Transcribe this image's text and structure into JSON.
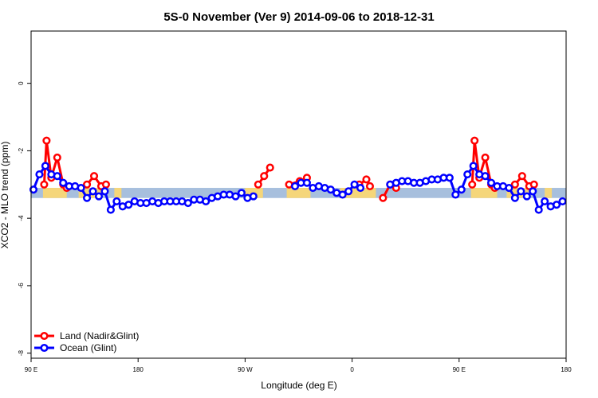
{
  "chart_data": {
    "type": "line",
    "title": "5S-0 November (Ver 9)   2014-09-06 to 2018-12-31",
    "xlabel": "Longitude (deg E)",
    "ylabel": "XCO2 - MLO trend (ppm)",
    "xlim": [
      0,
      450
    ],
    "ylim": [
      -8.15,
      1.55
    ],
    "x_ticks": [
      {
        "value": 0,
        "label": "90 E"
      },
      {
        "value": 90,
        "label": "180"
      },
      {
        "value": 180,
        "label": "90 W"
      },
      {
        "value": 270,
        "label": "0"
      },
      {
        "value": 360,
        "label": "90 E"
      },
      {
        "value": 450,
        "label": "180"
      }
    ],
    "y_ticks": [
      {
        "value": 0,
        "label": "0"
      },
      {
        "value": -2,
        "label": "-2"
      },
      {
        "value": -4,
        "label": "-4"
      },
      {
        "value": -6,
        "label": "-6"
      },
      {
        "value": -8,
        "label": "-8"
      }
    ],
    "background_band": {
      "y_range": [
        -3.4,
        -3.1
      ],
      "ocean_color": "#a7bfdd",
      "land_color": "#f5d67a"
    },
    "land_segments": [
      [
        10,
        30
      ],
      [
        40,
        60
      ],
      [
        70,
        76
      ],
      [
        180,
        195
      ],
      [
        215,
        235
      ],
      [
        260,
        290
      ],
      [
        370,
        392
      ],
      [
        400,
        420
      ],
      [
        432,
        438
      ]
    ],
    "legend": {
      "position": "bottom-left"
    },
    "series": [
      {
        "name": "Land (Nadir&Glint)",
        "color": "#ff0000",
        "segments": [
          [
            [
              11,
              -3.0
            ],
            [
              13,
              -1.7
            ],
            [
              17,
              -2.8
            ],
            [
              22,
              -2.2
            ],
            [
              27,
              -3.0
            ],
            [
              30,
              -3.1
            ]
          ],
          [
            [
              47,
              -3.0
            ],
            [
              53,
              -2.75
            ],
            [
              59,
              -3.05
            ],
            [
              63,
              -3.0
            ]
          ],
          [
            [
              191,
              -3.0
            ],
            [
              196,
              -2.75
            ],
            [
              201,
              -2.5
            ]
          ],
          [
            [
              217,
              -3.0
            ],
            [
              226,
              -2.9
            ],
            [
              232,
              -2.8
            ]
          ],
          [
            [
              276,
              -3.0
            ],
            [
              282,
              -2.85
            ],
            [
              285,
              -3.05
            ]
          ],
          [
            [
              296,
              -3.4
            ],
            [
              302,
              -3.0
            ],
            [
              307,
              -3.1
            ]
          ],
          [
            [
              371,
              -3.0
            ],
            [
              373,
              -1.7
            ],
            [
              377,
              -2.8
            ],
            [
              382,
              -2.2
            ],
            [
              387,
              -3.0
            ],
            [
              390,
              -3.1
            ]
          ],
          [
            [
              407,
              -3.0
            ],
            [
              413,
              -2.75
            ],
            [
              419,
              -3.05
            ],
            [
              423,
              -3.0
            ]
          ]
        ]
      },
      {
        "name": "Ocean (Glint)",
        "color": "#0000ff",
        "segments": [
          [
            [
              2,
              -3.15
            ],
            [
              7,
              -2.7
            ],
            [
              12,
              -2.45
            ],
            [
              17,
              -2.7
            ],
            [
              22,
              -2.75
            ],
            [
              27,
              -2.95
            ],
            [
              32,
              -3.05
            ],
            [
              37,
              -3.05
            ],
            [
              42,
              -3.1
            ],
            [
              47,
              -3.4
            ],
            [
              52,
              -3.2
            ],
            [
              57,
              -3.35
            ],
            [
              62,
              -3.2
            ],
            [
              67,
              -3.75
            ],
            [
              72,
              -3.5
            ],
            [
              77,
              -3.65
            ],
            [
              82,
              -3.6
            ],
            [
              87,
              -3.5
            ],
            [
              92,
              -3.55
            ],
            [
              97,
              -3.55
            ],
            [
              102,
              -3.5
            ],
            [
              107,
              -3.55
            ],
            [
              112,
              -3.5
            ],
            [
              117,
              -3.5
            ],
            [
              122,
              -3.5
            ],
            [
              127,
              -3.5
            ],
            [
              132,
              -3.55
            ],
            [
              137,
              -3.45
            ],
            [
              142,
              -3.45
            ],
            [
              147,
              -3.5
            ],
            [
              152,
              -3.4
            ],
            [
              157,
              -3.35
            ],
            [
              162,
              -3.3
            ],
            [
              167,
              -3.3
            ],
            [
              172,
              -3.35
            ],
            [
              177,
              -3.25
            ],
            [
              182,
              -3.4
            ],
            [
              187,
              -3.35
            ]
          ],
          [
            [
              222,
              -3.05
            ],
            [
              227,
              -2.95
            ],
            [
              232,
              -2.95
            ],
            [
              237,
              -3.1
            ],
            [
              242,
              -3.05
            ],
            [
              247,
              -3.1
            ],
            [
              252,
              -3.15
            ],
            [
              257,
              -3.25
            ],
            [
              262,
              -3.3
            ],
            [
              267,
              -3.2
            ],
            [
              272,
              -3.0
            ],
            [
              277,
              -3.1
            ]
          ],
          [
            [
              302,
              -3.0
            ],
            [
              307,
              -2.95
            ],
            [
              312,
              -2.9
            ],
            [
              317,
              -2.9
            ],
            [
              322,
              -2.95
            ],
            [
              327,
              -2.95
            ],
            [
              332,
              -2.9
            ],
            [
              337,
              -2.85
            ],
            [
              342,
              -2.85
            ],
            [
              347,
              -2.8
            ],
            [
              352,
              -2.8
            ],
            [
              357,
              -3.3
            ],
            [
              362,
              -3.15
            ],
            [
              367,
              -2.7
            ],
            [
              372,
              -2.45
            ],
            [
              377,
              -2.7
            ],
            [
              382,
              -2.75
            ],
            [
              387,
              -2.95
            ],
            [
              392,
              -3.05
            ],
            [
              397,
              -3.05
            ],
            [
              402,
              -3.1
            ],
            [
              407,
              -3.4
            ],
            [
              412,
              -3.2
            ],
            [
              417,
              -3.35
            ],
            [
              422,
              -3.2
            ],
            [
              427,
              -3.75
            ],
            [
              432,
              -3.5
            ],
            [
              437,
              -3.65
            ],
            [
              442,
              -3.6
            ],
            [
              447,
              -3.5
            ]
          ]
        ]
      }
    ]
  }
}
